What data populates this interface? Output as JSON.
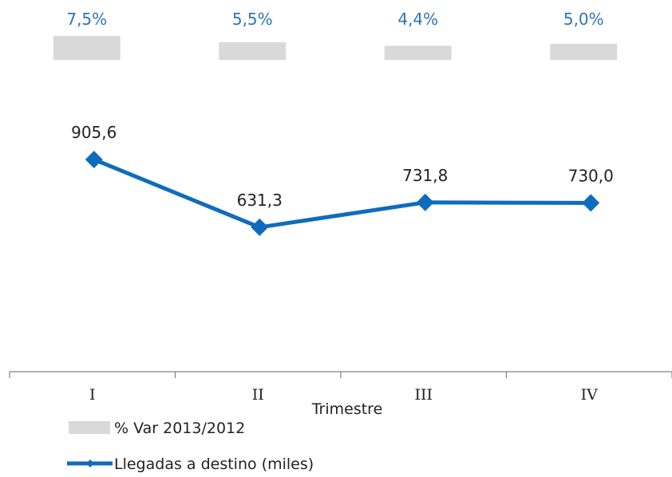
{
  "chart_data": {
    "type": "line",
    "categories": [
      "I",
      "II",
      "III",
      "IV"
    ],
    "xlabel": "Trimestre",
    "series": [
      {
        "name": "% Var 2013/2012",
        "kind": "bar",
        "values": [
          7.5,
          5.5,
          4.4,
          5.0
        ],
        "labels": [
          "7,5%",
          "5,5%",
          "4,4%",
          "5,0%"
        ],
        "color": "#d9d9d9",
        "label_color": "#2e75b6"
      },
      {
        "name": "Llegadas a destino (miles)",
        "kind": "line",
        "values": [
          905.6,
          631.3,
          731.8,
          730.0
        ],
        "labels": [
          "905,6",
          "631,3",
          "731,8",
          "730,0"
        ],
        "color": "#0f6cbd",
        "marker": "diamond"
      }
    ],
    "grid": false,
    "legend_position": "bottom-left"
  }
}
